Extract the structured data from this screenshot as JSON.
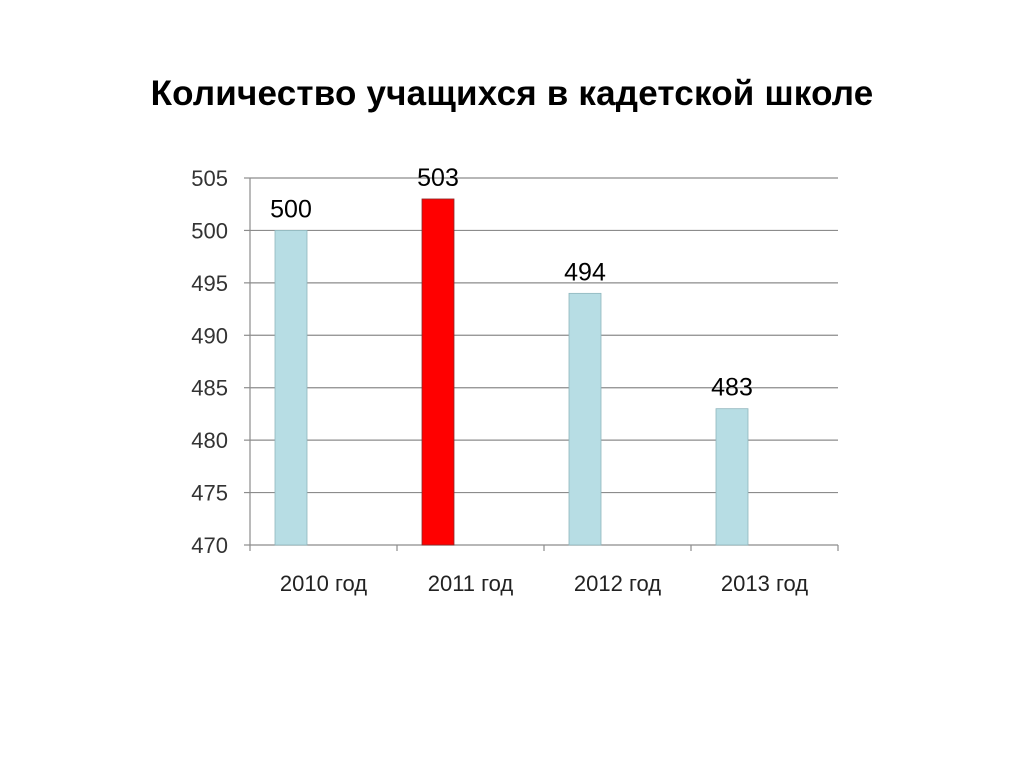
{
  "slide": {
    "title": "Количество учащихся в кадетской школе"
  },
  "chart_data": {
    "type": "bar",
    "title": "",
    "xlabel": "",
    "ylabel": "",
    "categories": [
      "2010 год",
      "2011 год",
      "2012 год",
      "2013 год"
    ],
    "values": [
      500,
      503,
      494,
      483
    ],
    "data_labels": [
      "500",
      "503",
      "494",
      "483"
    ],
    "ylim": [
      470,
      505
    ],
    "yticks": [
      470,
      475,
      480,
      485,
      490,
      495,
      500,
      505
    ],
    "ytick_labels": [
      "470",
      "475",
      "480",
      "485",
      "490",
      "495",
      "500",
      "505"
    ],
    "grid": true,
    "legend": "none",
    "colors": {
      "default_bar": "#b7dde4",
      "highlight_bar": "#ff0000",
      "grid": "#8c8c8c",
      "axis": "#8c8c8c",
      "text": "#000000"
    },
    "highlight_index": 1
  }
}
